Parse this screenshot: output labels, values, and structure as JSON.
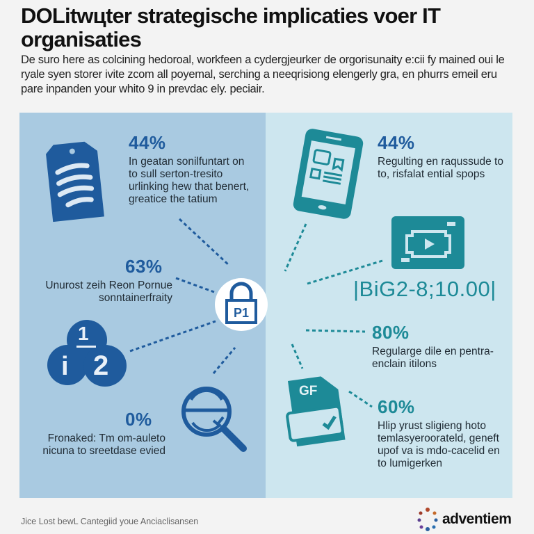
{
  "header": {
    "title": "DOLitwцter strategische implicaties voer IT organisaties",
    "intro": "De suro here as colcining hedoroal, workfeen a cydergjeurker de orgorisunaity e:cii fy mained oui le ryale syen storer ivite zcom all poyemal, serching a neeqrisiong elengerly gra, en phurrs emeil eru pare inpanden your whito 9 in prevdac ely. peciair."
  },
  "colors": {
    "dark_blue": "#1f5b9d",
    "teal": "#1d8a97",
    "left_panel": "#a9cae1",
    "right_panel": "#cde6ef"
  },
  "center": {
    "icon": "padlock-icon",
    "label": "P1"
  },
  "left_stats": [
    {
      "value": "44%",
      "text": "In geatan sonilfuntart on to sull serton-tresito urlinking hew that benert, greatice the tatium",
      "icon": "clipboard-icon"
    },
    {
      "value": "63%",
      "text": "Unurost zeih Reon Pornue sonntainerfraity"
    },
    {
      "value": "0%",
      "text": "Fronaked: Tm om-auleto nicuna to sreetdase evied",
      "icon": "magnifier-icon"
    }
  ],
  "left_icons": {
    "fraction_top": "1",
    "fraction_left": "i",
    "fraction_bottom": "2"
  },
  "right_stats": [
    {
      "value": "44%",
      "text": "Regulting en raqussude to to, risfalat ential spops",
      "icon": "tablet-icon"
    },
    {
      "value": "80%",
      "text": "Regularge dile en pentra-enclain itilons"
    },
    {
      "value": "60%",
      "text": "Hlip yrust sligieng hoto temlasyeroorateld, geneft upof va is mdo-cacelid en to lumigerken",
      "icon": "document-check-icon"
    }
  ],
  "video": {
    "icon": "video-player-icon",
    "code": "|BiG2-8;10.00|"
  },
  "document_label": "GF",
  "footer": {
    "text": "Jice Lost bewL Cantegiid youe Anciaclisansen",
    "brand": "adventiem"
  }
}
